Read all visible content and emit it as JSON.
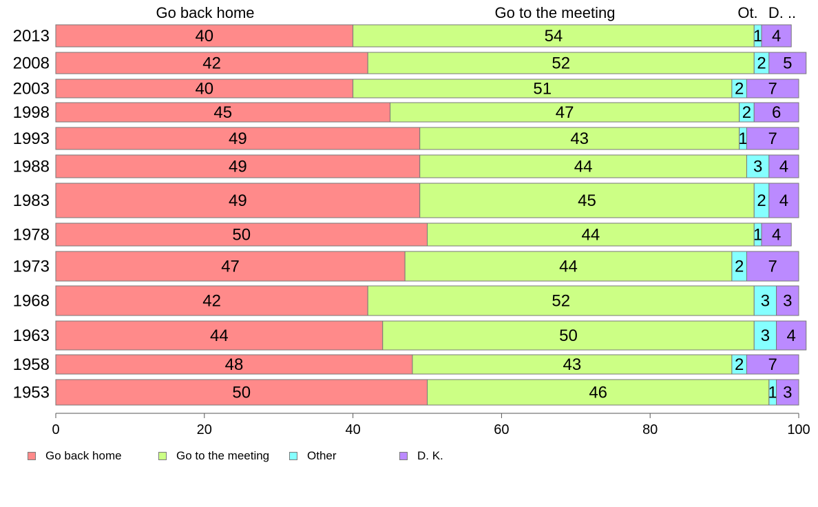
{
  "chart_data": {
    "type": "bar",
    "orientation": "horizontal",
    "stacked": true,
    "categories": [
      "2013",
      "2008",
      "2003",
      "1998",
      "1993",
      "1988",
      "1983",
      "1978",
      "1973",
      "1968",
      "1963",
      "1958",
      "1953"
    ],
    "series": [
      {
        "name": "Go back home",
        "color": "#ff8a8a",
        "values": [
          40,
          42,
          40,
          45,
          49,
          49,
          49,
          50,
          47,
          42,
          44,
          48,
          50
        ]
      },
      {
        "name": "Go to the meeting",
        "color": "#ccff85",
        "values": [
          54,
          52,
          51,
          47,
          43,
          44,
          45,
          44,
          44,
          52,
          50,
          43,
          46
        ]
      },
      {
        "name": "Other",
        "color": "#85ffff",
        "values": [
          1,
          2,
          2,
          2,
          1,
          3,
          2,
          1,
          2,
          3,
          3,
          2,
          1
        ]
      },
      {
        "name": "D. K.",
        "color": "#bb8aff",
        "values": [
          4,
          5,
          7,
          6,
          7,
          4,
          4,
          4,
          7,
          3,
          4,
          7,
          3
        ]
      }
    ],
    "column_headers": [
      "Go back home",
      "Go to the meeting",
      "Ot.",
      "D. .."
    ],
    "x_ticks": [
      "0",
      "20",
      "40",
      "60",
      "80",
      "100"
    ],
    "xlim": [
      0,
      100
    ],
    "title": "",
    "xlabel": "",
    "ylabel": "",
    "grid": false,
    "legend_position": "bottom-left"
  }
}
